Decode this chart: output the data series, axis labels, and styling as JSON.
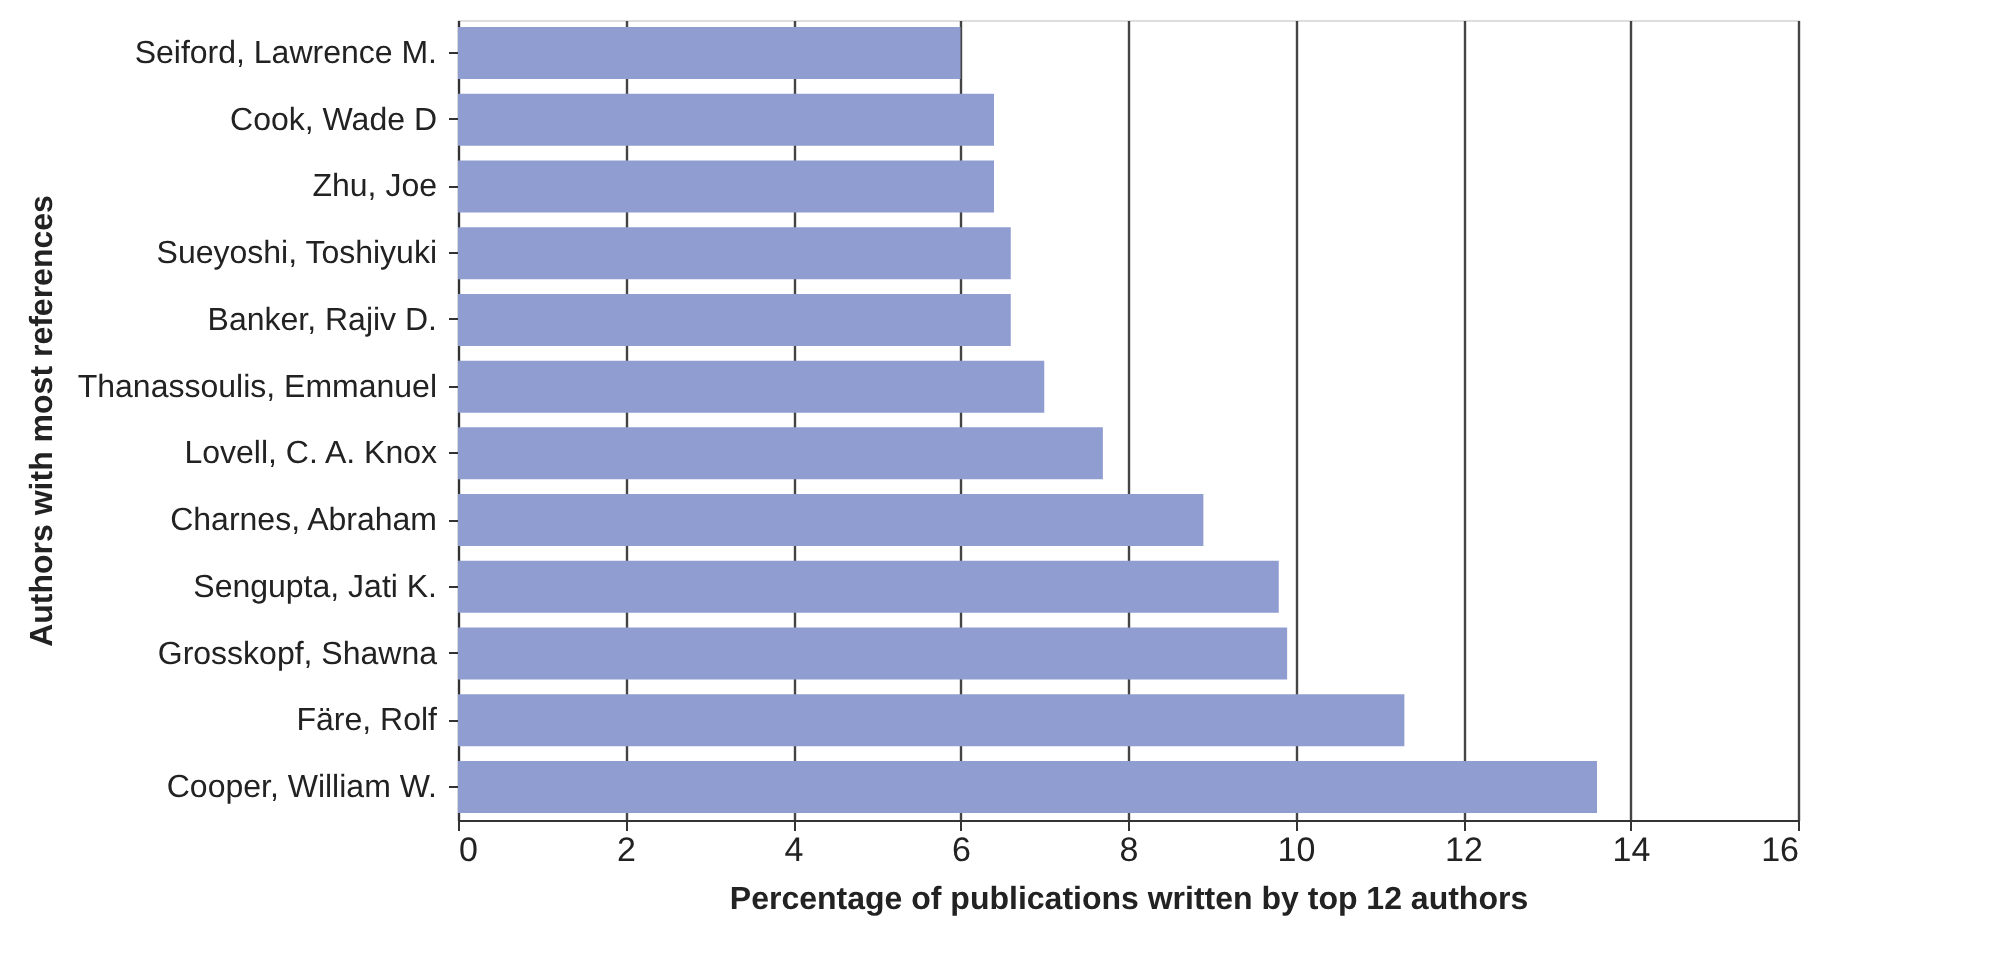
{
  "chart_data": {
    "type": "bar",
    "orientation": "horizontal",
    "categories": [
      "Seiford, Lawrence M.",
      "Cook, Wade D",
      "Zhu, Joe",
      "Sueyoshi, Toshiyuki",
      "Banker, Rajiv D.",
      "Thanassoulis, Emmanuel",
      "Lovell, C. A. Knox",
      "Charnes, Abraham",
      "Sengupta, Jati K.",
      "Grosskopf, Shawna",
      "Färe, Rolf",
      "Cooper, William W."
    ],
    "values": [
      6.0,
      6.4,
      6.4,
      6.6,
      6.6,
      7.0,
      7.7,
      8.9,
      9.8,
      9.9,
      11.3,
      13.6
    ],
    "color": "#909dd0",
    "xlabel": "Percentage of publications written by top 12 authors",
    "ylabel": "Authors with most references",
    "xlim": [
      0,
      16
    ],
    "xticks": [
      0,
      2,
      4,
      6,
      8,
      10,
      12,
      14,
      16
    ],
    "grid": "x"
  }
}
